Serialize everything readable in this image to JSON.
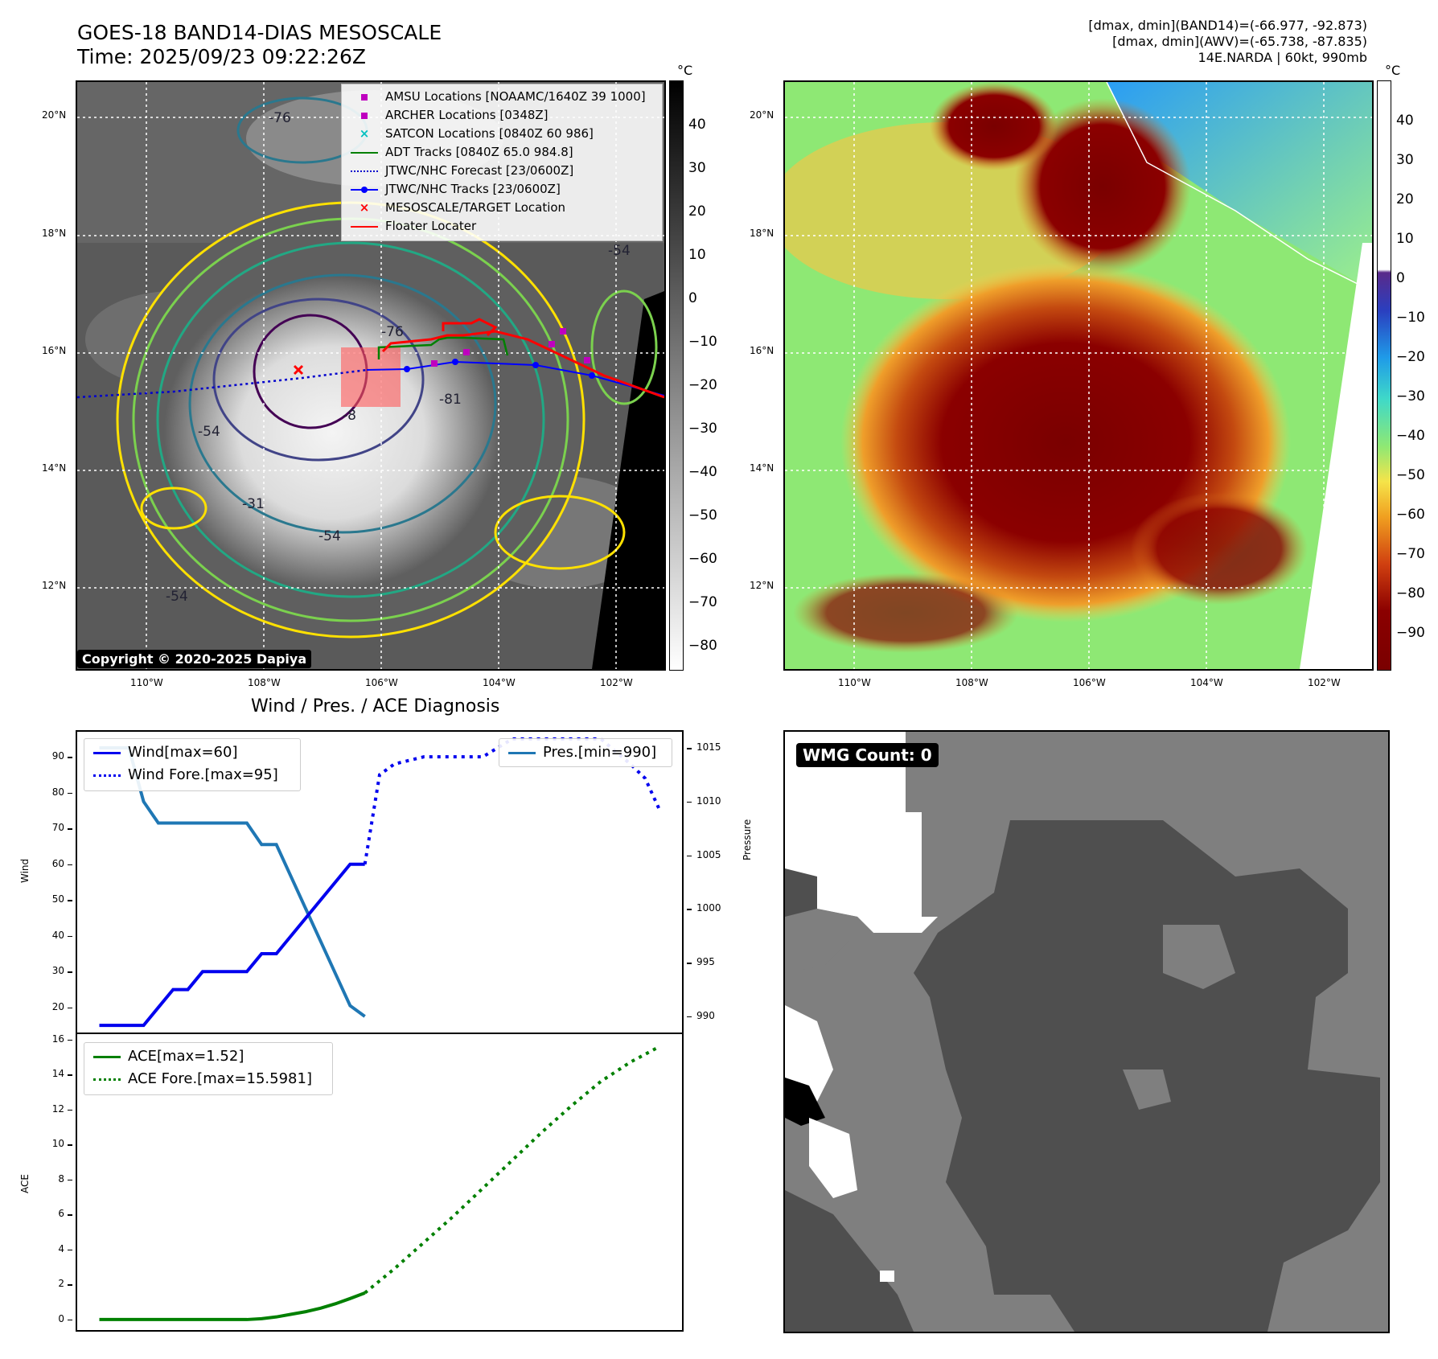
{
  "header": {
    "title_line1": "GOES-18 BAND14-DIAS MESOSCALE",
    "title_line2": "Time: 2025/09/23 09:22:26Z",
    "info_line1": "[dmax, dmin](BAND14)=(-66.977, -92.873)",
    "info_line2": "[dmax, dmin](AWV)=(-65.738, -87.835)",
    "info_line3": "14E.NARDA | 60kt, 990mb"
  },
  "map": {
    "lat_labels": [
      "20°N",
      "18°N",
      "16°N",
      "14°N",
      "12°N"
    ],
    "lon_labels": [
      "110°W",
      "108°W",
      "106°W",
      "104°W",
      "102°W"
    ],
    "copyright": "Copyright © 2020-2025 Dapiya",
    "contour_labels": [
      "-76",
      "-76",
      "-8",
      "-54",
      "-31",
      "-54",
      "-54",
      "-81",
      "-54"
    ],
    "legend": [
      {
        "label": "AMSU Locations [NOAAMC/1640Z 39 1000]",
        "symbol": "square",
        "color": "#bf00bf"
      },
      {
        "label": "ARCHER Locations [0348Z]",
        "symbol": "square",
        "color": "#bf00bf"
      },
      {
        "label": "SATCON Locations [0840Z 60 986]",
        "symbol": "x",
        "color": "#00bfbf"
      },
      {
        "label": "ADT Tracks [0840Z 65.0 984.8]",
        "symbol": "line",
        "color": "#008000"
      },
      {
        "label": "JTWC/NHC Forecast [23/0600Z]",
        "symbol": "dotted",
        "color": "#0000cc"
      },
      {
        "label": "JTWC/NHC Tracks [23/0600Z]",
        "symbol": "line-dot",
        "color": "#0000ff"
      },
      {
        "label": "MESOSCALE/TARGET Location",
        "symbol": "x",
        "color": "#ff0000"
      },
      {
        "label": "Floater Locater",
        "symbol": "line",
        "color": "#ff0000"
      }
    ],
    "colorbar_unit": "°C",
    "colorbar_ticks": [
      "40",
      "30",
      "20",
      "10",
      "0",
      "−10",
      "−20",
      "−30",
      "−40",
      "−50",
      "−60",
      "−70",
      "−80"
    ],
    "colorbar_right_ticks": [
      "40",
      "30",
      "20",
      "10",
      "0",
      "−10",
      "−20",
      "−30",
      "−40",
      "−50",
      "−60",
      "−70",
      "−80",
      "−90"
    ]
  },
  "diagnosis": {
    "title": "Wind / Pres. / ACE Diagnosis",
    "wind_axis_label": "Wind",
    "pressure_axis_label": "Pressure",
    "ace_axis_label": "ACE",
    "legend_wind": "Wind[max=60]",
    "legend_wind_fore": "Wind Fore.[max=95]",
    "legend_pres": "Pres.[min=990]",
    "legend_ace": "ACE[max=1.52]",
    "legend_ace_fore": "ACE Fore.[max=15.5981]"
  },
  "wmg": {
    "label": "WMG Count: 0"
  },
  "chart_data": [
    {
      "type": "line",
      "name": "Wind",
      "ylabel": "Wind",
      "ylim": [
        13,
        97
      ],
      "y_ticks": [
        20,
        30,
        40,
        50,
        60,
        70,
        80,
        90
      ],
      "series": [
        {
          "name": "Wind[max=60]",
          "style": "solid",
          "color": "#0000ee",
          "x": [
            0,
            1,
            2,
            3,
            4,
            5,
            6,
            7,
            8,
            9,
            10,
            11,
            12,
            13,
            14,
            15,
            16,
            17,
            18
          ],
          "values": [
            15,
            15,
            15,
            15,
            20,
            25,
            25,
            30,
            30,
            30,
            30,
            35,
            35,
            40,
            45,
            50,
            55,
            60,
            60
          ]
        },
        {
          "name": "Wind Fore.[max=95]",
          "style": "dotted",
          "color": "#0000ee",
          "x": [
            18,
            19,
            20,
            22,
            24,
            26,
            28,
            30,
            32,
            34,
            36,
            37,
            38
          ],
          "values": [
            60,
            85,
            88,
            90,
            90,
            90,
            95,
            95,
            95,
            95,
            88,
            84,
            75
          ]
        }
      ]
    },
    {
      "type": "line",
      "name": "Pressure",
      "ylabel": "Pressure",
      "ylim": [
        988.5,
        1016.5
      ],
      "y_ticks": [
        990,
        995,
        1000,
        1005,
        1010,
        1015
      ],
      "series": [
        {
          "name": "Pres.[min=990]",
          "style": "solid",
          "color": "#1f77b4",
          "x": [
            0,
            1,
            2,
            3,
            4,
            5,
            6,
            7,
            8,
            9,
            10,
            11,
            12,
            13,
            14,
            15,
            16,
            17,
            18
          ],
          "values": [
            1015,
            1015,
            1015,
            1010,
            1008,
            1008,
            1008,
            1008,
            1008,
            1008,
            1008,
            1006,
            1006,
            1003,
            1000,
            997,
            994,
            991,
            990
          ]
        }
      ]
    },
    {
      "type": "line",
      "name": "ACE",
      "ylabel": "ACE",
      "ylim": [
        -0.6,
        16.3
      ],
      "y_ticks": [
        0,
        2,
        4,
        6,
        8,
        10,
        12,
        14,
        16
      ],
      "series": [
        {
          "name": "ACE[max=1.52]",
          "style": "solid",
          "color": "#008000",
          "x": [
            0,
            2,
            4,
            6,
            8,
            10,
            11,
            12,
            13,
            14,
            15,
            16,
            17,
            18
          ],
          "values": [
            0,
            0,
            0,
            0,
            0,
            0,
            0.05,
            0.15,
            0.3,
            0.45,
            0.65,
            0.9,
            1.2,
            1.52
          ]
        },
        {
          "name": "ACE Fore.[max=15.5981]",
          "style": "dotted",
          "color": "#008000",
          "x": [
            18,
            20,
            22,
            24,
            26,
            28,
            30,
            32,
            34,
            36,
            38
          ],
          "values": [
            1.52,
            2.9,
            4.4,
            5.9,
            7.5,
            9.1,
            10.7,
            12.2,
            13.6,
            14.7,
            15.6
          ]
        }
      ]
    }
  ]
}
